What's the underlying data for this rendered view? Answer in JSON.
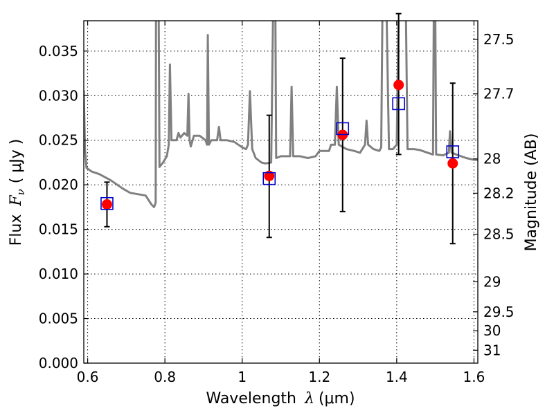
{
  "chart_data": {
    "type": "scatter",
    "xlabel_prefix": "Wavelength",
    "xlabel_math": "λ",
    "xlabel_unit": "(μm)",
    "ylabel_prefix": "Flux",
    "ylabel_math": "F",
    "ylabel_sub": "ν",
    "ylabel_unit": "( μJy )",
    "y2label": "Magnitude (AB)",
    "xlim": [
      0.59,
      1.61
    ],
    "ylim": [
      0.0,
      0.0384
    ],
    "grid": true,
    "x_ticks": [
      0.6,
      0.8,
      1.0,
      1.2,
      1.4,
      1.6
    ],
    "x_tick_labels": [
      "0.6",
      "0.8",
      "1",
      "1.2",
      "1.4",
      "1.6"
    ],
    "y_ticks": [
      0.0,
      0.005,
      0.01,
      0.015,
      0.02,
      0.025,
      0.03,
      0.035
    ],
    "y_tick_labels": [
      "0.000",
      "0.005",
      "0.010",
      "0.015",
      "0.020",
      "0.025",
      "0.030",
      "0.035"
    ],
    "mag_ticks": [
      27.5,
      27.7,
      28,
      28.2,
      28.5,
      29,
      29.5,
      30,
      31
    ],
    "mag_tick_labels": [
      "27.5",
      "27.7",
      "28",
      "28.2",
      "28.5",
      "29",
      "29.5",
      "30",
      "31"
    ],
    "mag_zero_point": 23.9,
    "colors": {
      "model": "#808080",
      "observed": "#ff0000",
      "model_band": "#0000cc",
      "errorbar": "#000000"
    },
    "observed": [
      {
        "x": 0.65,
        "y": 0.0178,
        "err_low": 0.0025,
        "err_high": 0.0025
      },
      {
        "x": 1.07,
        "y": 0.021,
        "err_low": 0.0069,
        "err_high": 0.0068
      },
      {
        "x": 1.26,
        "y": 0.0256,
        "err_low": 0.0086,
        "err_high": 0.0086
      },
      {
        "x": 1.405,
        "y": 0.0312,
        "err_low": 0.0078,
        "err_high": 0.008
      },
      {
        "x": 1.545,
        "y": 0.0224,
        "err_low": 0.009,
        "err_high": 0.009
      }
    ],
    "model_band_points": [
      {
        "x": 0.65,
        "y": 0.0179
      },
      {
        "x": 1.07,
        "y": 0.0207
      },
      {
        "x": 1.26,
        "y": 0.0263
      },
      {
        "x": 1.405,
        "y": 0.0291
      },
      {
        "x": 1.545,
        "y": 0.0237
      }
    ],
    "model_spectrum": [
      [
        0.59,
        0.0306
      ],
      [
        0.593,
        0.024
      ],
      [
        0.597,
        0.0219
      ],
      [
        0.61,
        0.0215
      ],
      [
        0.63,
        0.0212
      ],
      [
        0.66,
        0.0205
      ],
      [
        0.69,
        0.0196
      ],
      [
        0.71,
        0.0191
      ],
      [
        0.75,
        0.0188
      ],
      [
        0.765,
        0.0178
      ],
      [
        0.772,
        0.0175
      ],
      [
        0.776,
        0.018
      ],
      [
        0.777,
        0.039
      ],
      [
        0.784,
        0.039
      ],
      [
        0.786,
        0.022
      ],
      [
        0.795,
        0.0225
      ],
      [
        0.805,
        0.0232
      ],
      [
        0.81,
        0.0245
      ],
      [
        0.813,
        0.0335
      ],
      [
        0.817,
        0.025
      ],
      [
        0.83,
        0.025
      ],
      [
        0.835,
        0.0258
      ],
      [
        0.84,
        0.0253
      ],
      [
        0.85,
        0.0258
      ],
      [
        0.858,
        0.0255
      ],
      [
        0.861,
        0.0302
      ],
      [
        0.864,
        0.025
      ],
      [
        0.867,
        0.0243
      ],
      [
        0.875,
        0.0255
      ],
      [
        0.89,
        0.0255
      ],
      [
        0.905,
        0.025
      ],
      [
        0.909,
        0.0245
      ],
      [
        0.911,
        0.0368
      ],
      [
        0.914,
        0.0245
      ],
      [
        0.92,
        0.025
      ],
      [
        0.935,
        0.025
      ],
      [
        0.94,
        0.0265
      ],
      [
        0.944,
        0.025
      ],
      [
        0.96,
        0.025
      ],
      [
        0.98,
        0.0248
      ],
      [
        0.99,
        0.0245
      ],
      [
        1.0,
        0.0242
      ],
      [
        1.01,
        0.024
      ],
      [
        1.015,
        0.0245
      ],
      [
        1.02,
        0.0305
      ],
      [
        1.026,
        0.024
      ],
      [
        1.035,
        0.023
      ],
      [
        1.05,
        0.0225
      ],
      [
        1.06,
        0.0224
      ],
      [
        1.075,
        0.0225
      ],
      [
        1.08,
        0.039
      ],
      [
        1.086,
        0.039
      ],
      [
        1.088,
        0.023
      ],
      [
        1.1,
        0.0232
      ],
      [
        1.115,
        0.0232
      ],
      [
        1.124,
        0.0232
      ],
      [
        1.128,
        0.031
      ],
      [
        1.132,
        0.0232
      ],
      [
        1.15,
        0.0232
      ],
      [
        1.17,
        0.023
      ],
      [
        1.19,
        0.0232
      ],
      [
        1.2,
        0.0238
      ],
      [
        1.21,
        0.0238
      ],
      [
        1.225,
        0.0238
      ],
      [
        1.23,
        0.0245
      ],
      [
        1.24,
        0.0245
      ],
      [
        1.245,
        0.031
      ],
      [
        1.25,
        0.0245
      ],
      [
        1.27,
        0.024
      ],
      [
        1.29,
        0.0238
      ],
      [
        1.305,
        0.0236
      ],
      [
        1.318,
        0.0245
      ],
      [
        1.322,
        0.0272
      ],
      [
        1.326,
        0.0245
      ],
      [
        1.34,
        0.024
      ],
      [
        1.355,
        0.0238
      ],
      [
        1.36,
        0.0242
      ],
      [
        1.363,
        0.039
      ],
      [
        1.374,
        0.039
      ],
      [
        1.38,
        0.024
      ],
      [
        1.39,
        0.024
      ],
      [
        1.4,
        0.0245
      ],
      [
        1.405,
        0.039
      ],
      [
        1.424,
        0.039
      ],
      [
        1.428,
        0.024
      ],
      [
        1.445,
        0.024
      ],
      [
        1.46,
        0.0239
      ],
      [
        1.48,
        0.0236
      ],
      [
        1.494,
        0.0234
      ],
      [
        1.496,
        0.039
      ],
      [
        1.5,
        0.039
      ],
      [
        1.502,
        0.0234
      ],
      [
        1.52,
        0.0233
      ],
      [
        1.535,
        0.0236
      ],
      [
        1.538,
        0.026
      ],
      [
        1.542,
        0.0236
      ],
      [
        1.56,
        0.0233
      ],
      [
        1.58,
        0.023
      ],
      [
        1.6,
        0.0228
      ],
      [
        1.61,
        0.0228
      ]
    ]
  }
}
